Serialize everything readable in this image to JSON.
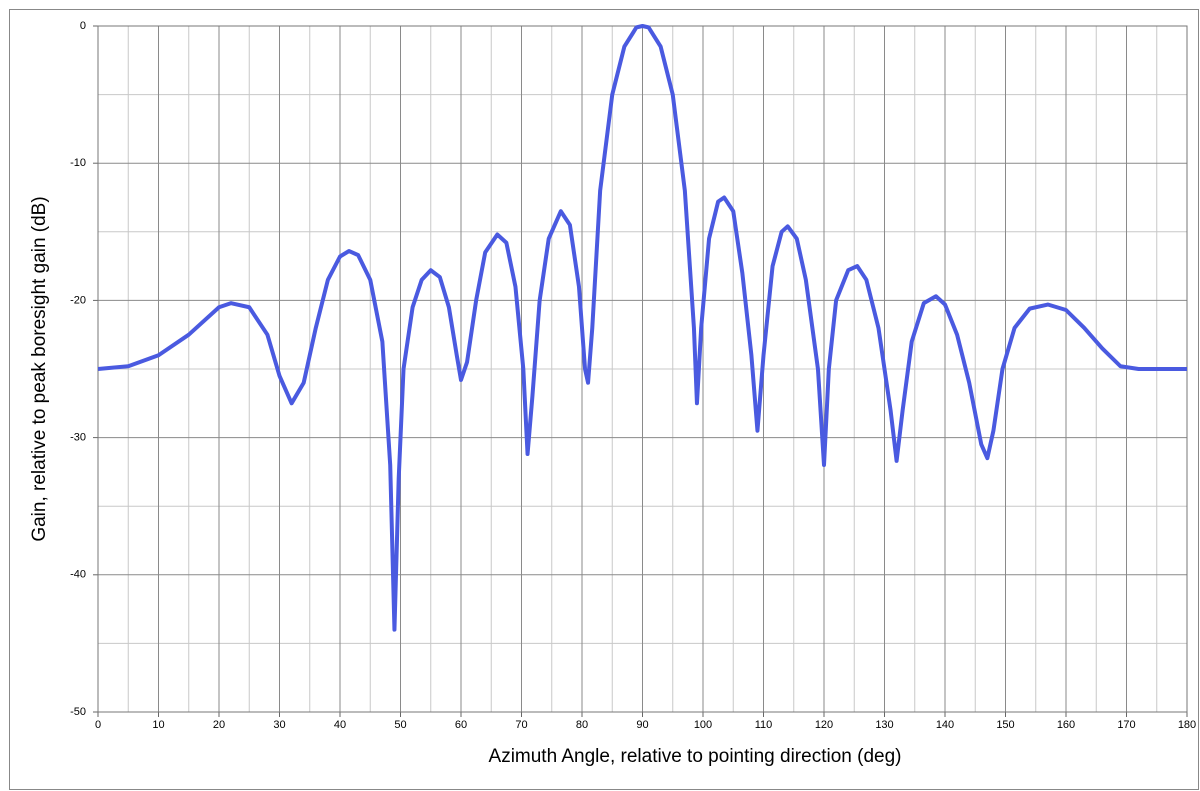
{
  "chart_data": {
    "type": "line",
    "x_label": "Azimuth Angle, relative to pointing direction (deg)",
    "y_label": "Gain, relative to peak boresight gain (dB)",
    "xlim": [
      0,
      180
    ],
    "xticks": [
      0,
      10,
      20,
      30,
      40,
      50,
      60,
      70,
      80,
      90,
      100,
      110,
      120,
      130,
      140,
      150,
      160,
      170,
      180
    ],
    "ylim": [
      -50,
      0
    ],
    "yticks": [
      0,
      -10,
      -20,
      -30,
      -40,
      -50
    ],
    "grid": true,
    "minor_grid": true,
    "series": [
      {
        "color": "#4a5ae0",
        "x": [
          0,
          5,
          10,
          15,
          20,
          22,
          25,
          28,
          30,
          32,
          34,
          36,
          38,
          40,
          41.5,
          43,
          45,
          47,
          48.3,
          49,
          49.7,
          50.5,
          52,
          53.5,
          55,
          56.5,
          58,
          59.3,
          60,
          61,
          62.5,
          64,
          66,
          67.5,
          69,
          70.3,
          71,
          71.8,
          73,
          74.5,
          76.5,
          78,
          79.5,
          80.5,
          81,
          81.7,
          83,
          85,
          87,
          89,
          90,
          91,
          93,
          95,
          97,
          98.5,
          99,
          99.7,
          101,
          102.5,
          103.5,
          105,
          106.5,
          108,
          109,
          110,
          111.5,
          113,
          114,
          115.5,
          117,
          119,
          120,
          120.8,
          122,
          124,
          125.5,
          127,
          129,
          131,
          132,
          133,
          134.5,
          136.5,
          138.5,
          140,
          142,
          144,
          146,
          147,
          148,
          149.5,
          151.5,
          154,
          157,
          160,
          163,
          166,
          169,
          172,
          180
        ],
        "values": [
          -25,
          -24.8,
          -24,
          -22.5,
          -20.5,
          -20.2,
          -20.5,
          -22.5,
          -25.5,
          -27.5,
          -26,
          -22,
          -18.5,
          -16.8,
          -16.4,
          -16.7,
          -18.5,
          -23,
          -32,
          -44,
          -33,
          -25,
          -20.5,
          -18.5,
          -17.8,
          -18.3,
          -20.5,
          -24,
          -25.8,
          -24.5,
          -20,
          -16.5,
          -15.2,
          -15.8,
          -19,
          -25,
          -31.2,
          -27,
          -20,
          -15.5,
          -13.5,
          -14.5,
          -19,
          -25,
          -26,
          -22,
          -12,
          -5,
          -1.5,
          -0.1,
          0,
          -0.1,
          -1.5,
          -5,
          -12,
          -22,
          -27.5,
          -22,
          -15.5,
          -12.8,
          -12.5,
          -13.5,
          -18,
          -24,
          -29.5,
          -24,
          -17.5,
          -15,
          -14.6,
          -15.5,
          -18.5,
          -25,
          -32,
          -25,
          -20,
          -17.8,
          -17.5,
          -18.5,
          -22,
          -28,
          -31.7,
          -28,
          -23,
          -20.2,
          -19.7,
          -20.3,
          -22.5,
          -26,
          -30.5,
          -31.5,
          -29.5,
          -25,
          -22,
          -20.6,
          -20.3,
          -20.7,
          -22,
          -23.5,
          -24.8,
          -25,
          -25
        ]
      }
    ]
  }
}
